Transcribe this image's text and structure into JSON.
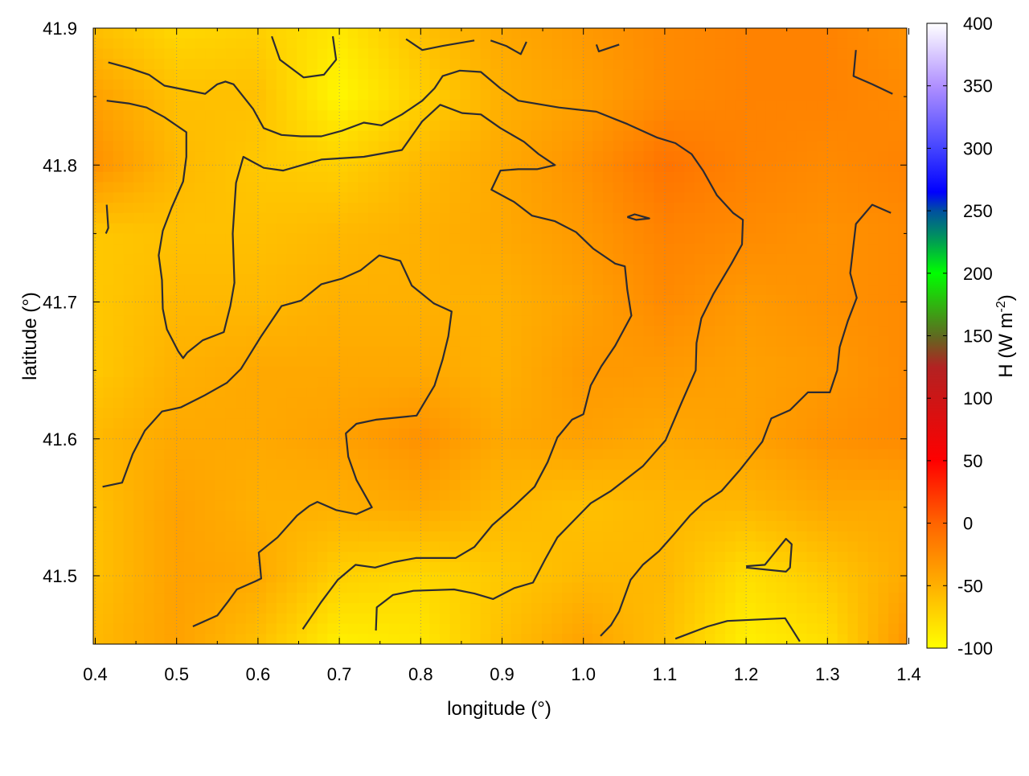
{
  "chart_data": {
    "type": "heatmap",
    "xlabel": "longitude (°)",
    "ylabel": "latitude (°)",
    "colorbar_label": {
      "base": "H (W m",
      "sup": "-2",
      "close": ")"
    },
    "xlim": [
      0.4,
      1.4
    ],
    "ylim": [
      41.45,
      41.9
    ],
    "xticks": [
      "0.4",
      "0.5",
      "0.6",
      "0.7",
      "0.8",
      "0.9",
      "1.0",
      "1.1",
      "1.2",
      "1.3",
      "1.4"
    ],
    "yticks": [
      "41.5",
      "41.6",
      "41.7",
      "41.8",
      "41.9"
    ],
    "grid": true,
    "colorbar": {
      "range": [
        -100,
        400
      ],
      "ticks": [
        "-100",
        "-50",
        "0",
        "50",
        "100",
        "150",
        "200",
        "250",
        "300",
        "350",
        "400"
      ],
      "stops": [
        {
          "v": -100,
          "c": "#ffff00"
        },
        {
          "v": -50,
          "c": "#ffb000"
        },
        {
          "v": 0,
          "c": "#ff6400"
        },
        {
          "v": 50,
          "c": "#ff0000"
        },
        {
          "v": 100,
          "c": "#cc1616"
        },
        {
          "v": 125,
          "c": "#b22222"
        },
        {
          "v": 150,
          "c": "#5f6a20"
        },
        {
          "v": 200,
          "c": "#00ff00"
        },
        {
          "v": 225,
          "c": "#00a050"
        },
        {
          "v": 250,
          "c": "#0050a0"
        },
        {
          "v": 265,
          "c": "#0000ff"
        },
        {
          "v": 300,
          "c": "#4444ff"
        },
        {
          "v": 350,
          "c": "#b090ff"
        },
        {
          "v": 400,
          "c": "#ffffff"
        }
      ]
    },
    "grid_lon": [
      0.4,
      0.5,
      0.6,
      0.7,
      0.8,
      0.9,
      1.0,
      1.1,
      1.2,
      1.3,
      1.4
    ],
    "grid_lat": [
      41.9,
      41.85,
      41.8,
      41.75,
      41.7,
      41.65,
      41.6,
      41.55,
      41.5,
      41.45
    ],
    "values": [
      [
        -60,
        -75,
        -70,
        -85,
        -60,
        -45,
        -35,
        -25,
        -20,
        -20,
        -30
      ],
      [
        -40,
        -60,
        -60,
        -95,
        -70,
        -50,
        -40,
        -25,
        -20,
        -20,
        -25
      ],
      [
        -30,
        -55,
        -65,
        -70,
        -55,
        -45,
        -30,
        -10,
        -20,
        -25,
        -20
      ],
      [
        -65,
        -60,
        -60,
        -55,
        -50,
        -45,
        -35,
        -20,
        -25,
        -30,
        -25
      ],
      [
        -65,
        -55,
        -55,
        -50,
        -50,
        -50,
        -40,
        -25,
        -35,
        -30,
        -25
      ],
      [
        -65,
        -50,
        -45,
        -45,
        -45,
        -50,
        -35,
        -35,
        -40,
        -35,
        -25
      ],
      [
        -55,
        -45,
        -45,
        -40,
        -30,
        -45,
        -40,
        -45,
        -40,
        -30,
        -25
      ],
      [
        -60,
        -40,
        -50,
        -50,
        -45,
        -55,
        -60,
        -55,
        -55,
        -45,
        -45
      ],
      [
        -60,
        -40,
        -45,
        -70,
        -75,
        -65,
        -55,
        -55,
        -80,
        -65,
        -45
      ],
      [
        -55,
        -40,
        -60,
        -90,
        -85,
        -60,
        -40,
        -60,
        -90,
        -80,
        -30
      ]
    ],
    "contour_color": "#2b2b33",
    "contours": [
      [
        [
          0.416,
          41.875
        ],
        [
          0.441,
          41.871
        ],
        [
          0.466,
          41.866
        ],
        [
          0.485,
          41.858
        ],
        [
          0.535,
          41.852
        ],
        [
          0.55,
          41.859
        ],
        [
          0.56,
          41.861
        ],
        [
          0.57,
          41.859
        ],
        [
          0.594,
          41.841
        ],
        [
          0.607,
          41.827
        ],
        [
          0.629,
          41.822
        ],
        [
          0.653,
          41.821
        ],
        [
          0.678,
          41.821
        ],
        [
          0.703,
          41.825
        ],
        [
          0.73,
          41.831
        ],
        [
          0.752,
          41.829
        ],
        [
          0.777,
          41.837
        ],
        [
          0.802,
          41.847
        ],
        [
          0.817,
          41.856
        ],
        [
          0.827,
          41.865
        ],
        [
          0.848,
          41.869
        ],
        [
          0.874,
          41.868
        ],
        [
          0.898,
          41.856
        ],
        [
          0.92,
          41.847
        ],
        [
          0.97,
          41.842
        ],
        [
          1.016,
          41.839
        ],
        [
          1.054,
          41.83
        ],
        [
          1.091,
          41.82
        ],
        [
          1.113,
          41.816
        ],
        [
          1.133,
          41.808
        ],
        [
          1.147,
          41.796
        ],
        [
          1.164,
          41.778
        ],
        [
          1.184,
          41.765
        ],
        [
          1.196,
          41.76
        ],
        [
          1.195,
          41.742
        ],
        [
          1.182,
          41.728
        ],
        [
          1.16,
          41.706
        ],
        [
          1.145,
          41.688
        ],
        [
          1.139,
          41.67
        ],
        [
          1.138,
          41.65
        ],
        [
          1.121,
          41.627
        ],
        [
          1.101,
          41.599
        ],
        [
          1.073,
          41.58
        ],
        [
          1.034,
          41.562
        ],
        [
          1.009,
          41.553
        ],
        [
          0.986,
          41.539
        ],
        [
          0.968,
          41.528
        ],
        [
          0.953,
          41.512
        ],
        [
          0.938,
          41.495
        ],
        [
          0.915,
          41.491
        ],
        [
          0.889,
          41.483
        ],
        [
          0.866,
          41.487
        ],
        [
          0.841,
          41.49
        ],
        [
          0.791,
          41.489
        ],
        [
          0.766,
          41.486
        ],
        [
          0.746,
          41.477
        ],
        [
          0.745,
          41.46
        ]
      ],
      [
        [
          0.414,
          41.847
        ],
        [
          0.441,
          41.845
        ],
        [
          0.463,
          41.842
        ],
        [
          0.485,
          41.835
        ],
        [
          0.512,
          41.824
        ],
        [
          0.512,
          41.806
        ],
        [
          0.508,
          41.788
        ],
        [
          0.494,
          41.769
        ],
        [
          0.483,
          41.752
        ],
        [
          0.478,
          41.734
        ],
        [
          0.482,
          41.716
        ],
        [
          0.483,
          41.695
        ],
        [
          0.488,
          41.68
        ],
        [
          0.502,
          41.664
        ],
        [
          0.508,
          41.659
        ],
        [
          0.513,
          41.663
        ],
        [
          0.532,
          41.672
        ],
        [
          0.558,
          41.678
        ],
        [
          0.566,
          41.697
        ],
        [
          0.571,
          41.714
        ],
        [
          0.569,
          41.75
        ],
        [
          0.573,
          41.787
        ],
        [
          0.582,
          41.806
        ],
        [
          0.607,
          41.798
        ],
        [
          0.631,
          41.796
        ],
        [
          0.678,
          41.804
        ],
        [
          0.73,
          41.806
        ],
        [
          0.777,
          41.811
        ],
        [
          0.802,
          41.832
        ],
        [
          0.824,
          41.844
        ],
        [
          0.851,
          41.838
        ],
        [
          0.874,
          41.837
        ],
        [
          0.898,
          41.827
        ],
        [
          0.927,
          41.817
        ],
        [
          0.945,
          41.808
        ],
        [
          0.965,
          41.8
        ],
        [
          0.943,
          41.797
        ],
        [
          0.92,
          41.797
        ],
        [
          0.898,
          41.796
        ],
        [
          0.887,
          41.782
        ],
        [
          0.915,
          41.773
        ],
        [
          0.937,
          41.763
        ],
        [
          0.965,
          41.759
        ],
        [
          0.991,
          41.751
        ],
        [
          1.012,
          41.739
        ],
        [
          1.039,
          41.728
        ],
        [
          1.051,
          41.726
        ],
        [
          1.054,
          41.709
        ],
        [
          1.059,
          41.69
        ],
        [
          1.039,
          41.668
        ],
        [
          1.022,
          41.653
        ],
        [
          1.009,
          41.639
        ],
        [
          1.0,
          41.618
        ],
        [
          0.986,
          41.614
        ],
        [
          0.968,
          41.601
        ],
        [
          0.956,
          41.583
        ],
        [
          0.94,
          41.565
        ],
        [
          0.915,
          41.551
        ],
        [
          0.888,
          41.537
        ],
        [
          0.866,
          41.521
        ],
        [
          0.843,
          41.513
        ],
        [
          0.794,
          41.513
        ],
        [
          0.767,
          41.51
        ],
        [
          0.744,
          41.506
        ],
        [
          0.72,
          41.508
        ],
        [
          0.698,
          41.497
        ],
        [
          0.678,
          41.481
        ],
        [
          0.655,
          41.461
        ]
      ],
      [
        [
          0.409,
          41.565
        ],
        [
          0.433,
          41.568
        ],
        [
          0.446,
          41.589
        ],
        [
          0.461,
          41.606
        ],
        [
          0.482,
          41.62
        ],
        [
          0.505,
          41.623
        ],
        [
          0.535,
          41.632
        ],
        [
          0.562,
          41.641
        ],
        [
          0.579,
          41.651
        ],
        [
          0.604,
          41.675
        ],
        [
          0.629,
          41.697
        ],
        [
          0.653,
          41.701
        ],
        [
          0.678,
          41.713
        ],
        [
          0.703,
          41.717
        ],
        [
          0.726,
          41.723
        ],
        [
          0.749,
          41.734
        ],
        [
          0.775,
          41.73
        ],
        [
          0.789,
          41.712
        ],
        [
          0.816,
          41.699
        ],
        [
          0.838,
          41.693
        ],
        [
          0.834,
          41.675
        ],
        [
          0.827,
          41.658
        ],
        [
          0.817,
          41.639
        ],
        [
          0.795,
          41.617
        ],
        [
          0.745,
          41.614
        ],
        [
          0.721,
          41.611
        ],
        [
          0.708,
          41.604
        ],
        [
          0.711,
          41.587
        ],
        [
          0.721,
          41.57
        ],
        [
          0.74,
          41.55
        ],
        [
          0.721,
          41.545
        ],
        [
          0.696,
          41.548
        ],
        [
          0.673,
          41.554
        ],
        [
          0.663,
          41.551
        ],
        [
          0.648,
          41.544
        ],
        [
          0.624,
          41.528
        ],
        [
          0.601,
          41.517
        ],
        [
          0.604,
          41.498
        ],
        [
          0.597,
          41.496
        ],
        [
          0.574,
          41.49
        ],
        [
          0.563,
          41.481
        ],
        [
          0.55,
          41.471
        ],
        [
          0.52,
          41.463
        ]
      ],
      [
        [
          1.378,
          41.765
        ],
        [
          1.355,
          41.771
        ],
        [
          1.335,
          41.757
        ],
        [
          1.328,
          41.721
        ],
        [
          1.336,
          41.703
        ],
        [
          1.325,
          41.686
        ],
        [
          1.315,
          41.667
        ],
        [
          1.312,
          41.65
        ],
        [
          1.303,
          41.634
        ],
        [
          1.276,
          41.634
        ],
        [
          1.254,
          41.621
        ],
        [
          1.231,
          41.615
        ],
        [
          1.227,
          41.609
        ],
        [
          1.22,
          41.598
        ],
        [
          1.192,
          41.577
        ],
        [
          1.17,
          41.562
        ],
        [
          1.147,
          41.553
        ],
        [
          1.131,
          41.544
        ],
        [
          1.111,
          41.53
        ],
        [
          1.093,
          41.518
        ],
        [
          1.073,
          41.508
        ],
        [
          1.058,
          41.497
        ],
        [
          1.044,
          41.474
        ],
        [
          1.034,
          41.464
        ],
        [
          1.021,
          41.456
        ]
      ],
      [
        [
          1.054,
          41.762
        ],
        [
          1.063,
          41.764
        ],
        [
          1.081,
          41.761
        ],
        [
          1.065,
          41.76
        ],
        [
          1.054,
          41.762
        ]
      ],
      [
        [
          1.113,
          41.454
        ],
        [
          1.153,
          41.463
        ],
        [
          1.177,
          41.467
        ],
        [
          1.248,
          41.469
        ],
        [
          1.266,
          41.452
        ]
      ],
      [
        [
          1.2,
          41.507
        ],
        [
          1.223,
          41.508
        ],
        [
          1.249,
          41.527
        ],
        [
          1.256,
          41.523
        ],
        [
          1.254,
          41.506
        ],
        [
          1.249,
          41.503
        ],
        [
          1.2,
          41.506
        ]
      ],
      [
        [
          0.617,
          41.894
        ],
        [
          0.627,
          41.877
        ],
        [
          0.656,
          41.864
        ],
        [
          0.681,
          41.866
        ],
        [
          0.696,
          41.877
        ],
        [
          0.692,
          41.894
        ]
      ],
      [
        [
          0.782,
          41.892
        ],
        [
          0.802,
          41.884
        ],
        [
          0.827,
          41.887
        ],
        [
          0.866,
          41.891
        ]
      ],
      [
        [
          0.886,
          41.891
        ],
        [
          0.905,
          41.887
        ],
        [
          0.923,
          41.881
        ],
        [
          0.93,
          41.89
        ]
      ],
      [
        [
          1.016,
          41.888
        ],
        [
          1.019,
          41.883
        ],
        [
          1.044,
          41.888
        ]
      ],
      [
        [
          1.335,
          41.884
        ],
        [
          1.332,
          41.865
        ],
        [
          1.355,
          41.859
        ],
        [
          1.38,
          41.852
        ]
      ],
      [
        [
          0.414,
          41.771
        ],
        [
          0.416,
          41.754
        ],
        [
          0.413,
          41.75
        ]
      ]
    ]
  }
}
